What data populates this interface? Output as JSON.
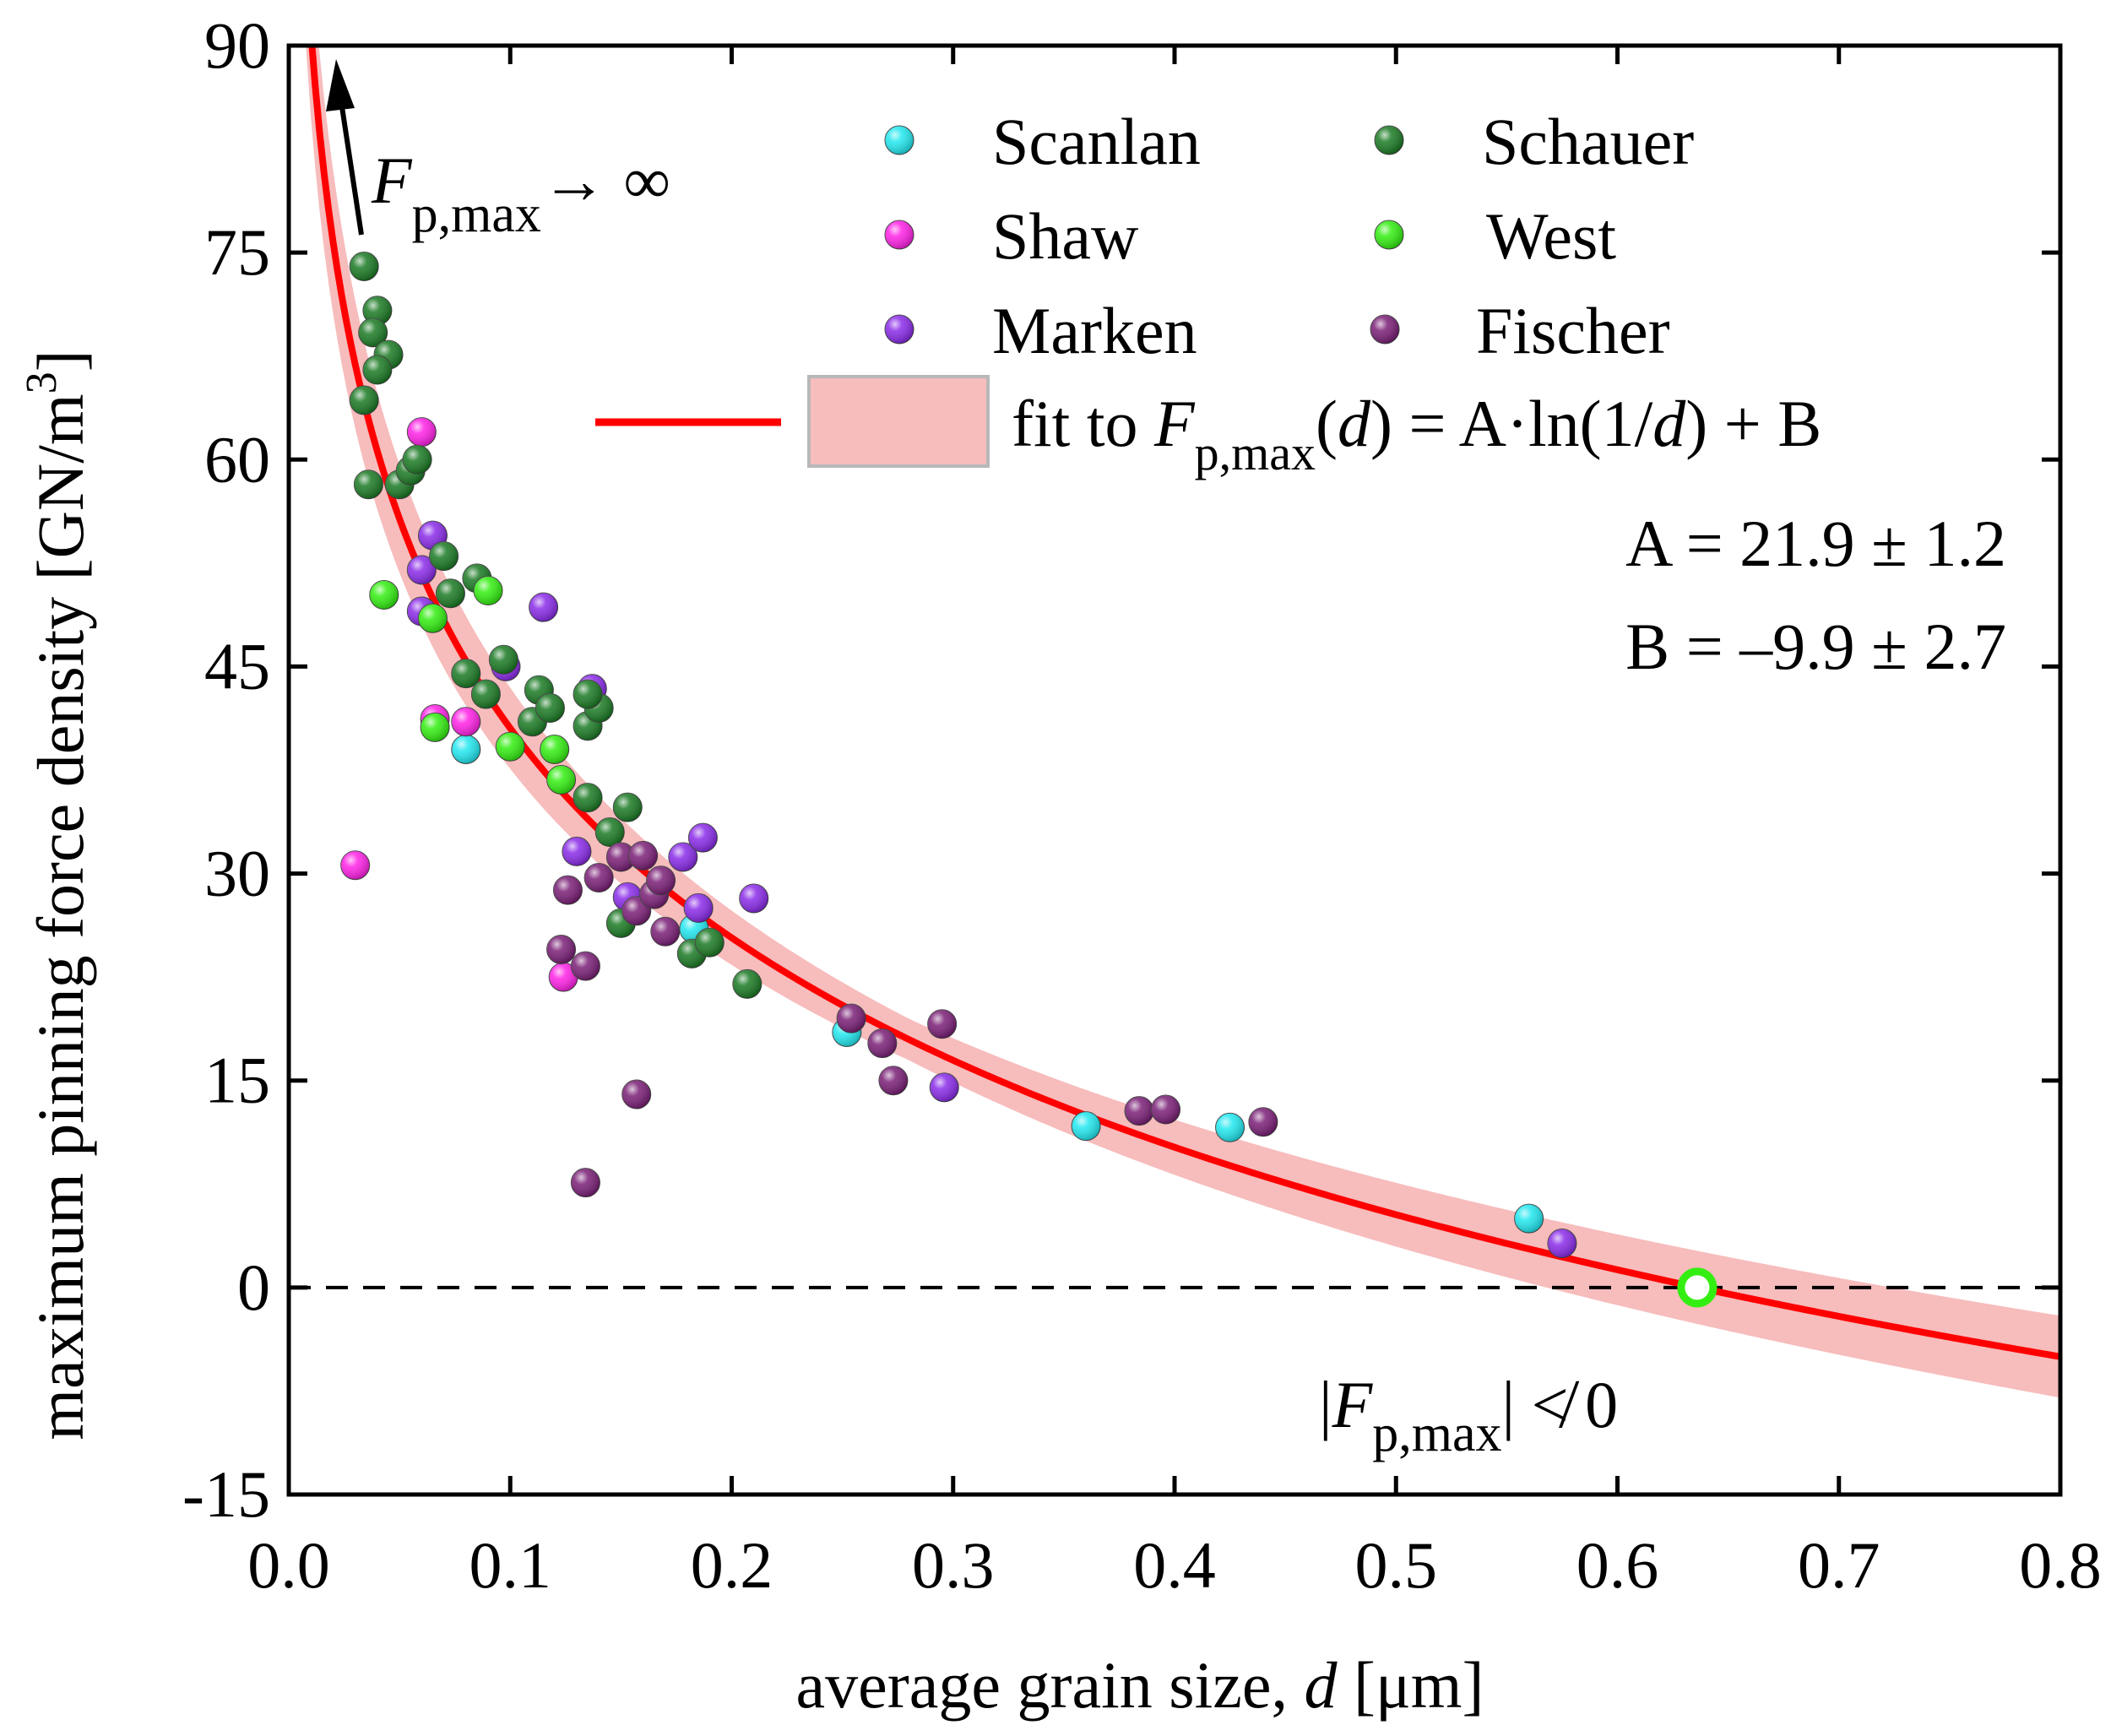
{
  "chart_data": {
    "type": "scatter",
    "xlabel_main": "average grain size, ",
    "xlabel_var": "d",
    "xlabel_unit": " [μm]",
    "ylabel_main": "maximum pinning force density [GN/m",
    "ylabel_sup": "3",
    "ylabel_close": "]",
    "xlim": [
      0.0,
      0.8
    ],
    "ylim": [
      -15,
      90
    ],
    "x_ticks": [
      "0.0",
      "0.1",
      "0.2",
      "0.3",
      "0.4",
      "0.5",
      "0.6",
      "0.7",
      "0.8"
    ],
    "y_ticks": [
      "-15",
      "0",
      "15",
      "30",
      "45",
      "60",
      "75",
      "90"
    ],
    "zero_line": 0,
    "fit": {
      "label_prefix": "fit to ",
      "label_F": "F",
      "label_sub": "p,max",
      "label_open": "(",
      "label_var": "d",
      "label_mid": ") = A·ln(1/",
      "label_var2": "d",
      "label_end": ") + B",
      "A_text": "A = 21.9 ± 1.2",
      "B_text": "B = –9.9 ± 2.7",
      "A": 21.9,
      "B": -9.9,
      "band_color": "#f7bcbc",
      "line_color": "#ff0000"
    },
    "annotations": {
      "arrow_F": "F",
      "arrow_sub": "p,max",
      "arrow_tail": "→ ∞",
      "neg_pre": "|",
      "neg_F": "F",
      "neg_sub": "p,max",
      "neg_post": "| ≮ 0"
    },
    "series": [
      {
        "name": "Scanlan",
        "color": "#22e8f0",
        "points": [
          [
            0.08,
            39
          ],
          [
            0.183,
            26
          ],
          [
            0.252,
            18.5
          ],
          [
            0.36,
            11.7
          ],
          [
            0.425,
            11.6
          ],
          [
            0.56,
            5
          ],
          [
            0.636,
            0
          ]
        ]
      },
      {
        "name": "Shaw",
        "color": "#ff22e6",
        "points": [
          [
            0.03,
            30.6
          ],
          [
            0.06,
            62
          ],
          [
            0.066,
            41.2
          ],
          [
            0.08,
            41
          ],
          [
            0.124,
            22.5
          ]
        ]
      },
      {
        "name": "Marken",
        "color": "#8a2be8",
        "points": [
          [
            0.065,
            54.5
          ],
          [
            0.06,
            52
          ],
          [
            0.06,
            49
          ],
          [
            0.098,
            45
          ],
          [
            0.115,
            49.3
          ],
          [
            0.137,
            43.4
          ],
          [
            0.13,
            31.6
          ],
          [
            0.153,
            28.3
          ],
          [
            0.178,
            31.2
          ],
          [
            0.187,
            32.6
          ],
          [
            0.185,
            27.5
          ],
          [
            0.21,
            28.2
          ],
          [
            0.296,
            14.5
          ],
          [
            0.575,
            3.2
          ]
        ]
      },
      {
        "name": "Schauer",
        "color": "#1b7a24",
        "points": [
          [
            0.034,
            74
          ],
          [
            0.04,
            70.8
          ],
          [
            0.038,
            69.2
          ],
          [
            0.045,
            67.6
          ],
          [
            0.04,
            66.5
          ],
          [
            0.034,
            64.3
          ],
          [
            0.036,
            58.2
          ],
          [
            0.05,
            58.2
          ],
          [
            0.055,
            59.2
          ],
          [
            0.058,
            60
          ],
          [
            0.07,
            53
          ],
          [
            0.073,
            50.3
          ],
          [
            0.085,
            51.4
          ],
          [
            0.08,
            44.5
          ],
          [
            0.089,
            43
          ],
          [
            0.097,
            45.5
          ],
          [
            0.113,
            43.3
          ],
          [
            0.11,
            41
          ],
          [
            0.118,
            42
          ],
          [
            0.135,
            40.7
          ],
          [
            0.14,
            42
          ],
          [
            0.135,
            43
          ],
          [
            0.135,
            35.5
          ],
          [
            0.145,
            33
          ],
          [
            0.153,
            34.8
          ],
          [
            0.15,
            26.4
          ],
          [
            0.182,
            24.2
          ],
          [
            0.19,
            25
          ],
          [
            0.207,
            22
          ]
        ]
      },
      {
        "name": "West",
        "color": "#33ee11",
        "points": [
          [
            0.043,
            50.2
          ],
          [
            0.065,
            48.5
          ],
          [
            0.09,
            50.5
          ],
          [
            0.066,
            40.6
          ],
          [
            0.1,
            39.2
          ],
          [
            0.12,
            39
          ],
          [
            0.123,
            36.8
          ],
          [
            0.636,
            0
          ]
        ]
      },
      {
        "name": "Fischer",
        "color": "#7a1f76",
        "points": [
          [
            0.126,
            28.8
          ],
          [
            0.123,
            24.5
          ],
          [
            0.134,
            23.3
          ],
          [
            0.14,
            29.7
          ],
          [
            0.15,
            31.2
          ],
          [
            0.157,
            27.3
          ],
          [
            0.16,
            31.3
          ],
          [
            0.165,
            28.5
          ],
          [
            0.168,
            29.5
          ],
          [
            0.17,
            25.8
          ],
          [
            0.157,
            14
          ],
          [
            0.134,
            7.6
          ],
          [
            0.254,
            19.5
          ],
          [
            0.268,
            17.7
          ],
          [
            0.273,
            15
          ],
          [
            0.295,
            19.1
          ],
          [
            0.384,
            12.8
          ],
          [
            0.396,
            12.9
          ],
          [
            0.44,
            12
          ]
        ]
      }
    ],
    "open_marker": {
      "x": 0.636,
      "y": 0,
      "color": "#33ee11"
    }
  }
}
